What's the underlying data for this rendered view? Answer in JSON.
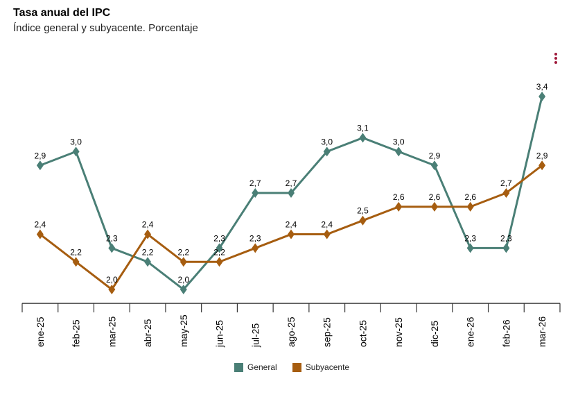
{
  "header": {
    "title": "Tasa anual del IPC",
    "subtitle": "Índice general y subyacente. Porcentaje"
  },
  "menu": {
    "icon": "vertical-dots-icon"
  },
  "chart_data": {
    "type": "line",
    "title": "Tasa anual del IPC",
    "subtitle": "Índice general y subyacente. Porcentaje",
    "xlabel": "",
    "ylabel": "",
    "categories": [
      "ene-25",
      "feb-25",
      "mar-25",
      "abr-25",
      "may-25",
      "jun-25",
      "jul-25",
      "ago-25",
      "sep-25",
      "oct-25",
      "nov-25",
      "dic-25",
      "ene-26",
      "feb-26",
      "mar-26"
    ],
    "ylim": [
      1.9,
      3.6
    ],
    "grid": false,
    "legend_position": "bottom",
    "series": [
      {
        "name": "General",
        "color": "#4a7f76",
        "values": [
          2.9,
          3.0,
          2.3,
          2.2,
          2.0,
          2.3,
          2.7,
          2.7,
          3.0,
          3.1,
          3.0,
          2.9,
          2.3,
          2.3,
          3.4
        ]
      },
      {
        "name": "Subyacente",
        "color": "#a65d10",
        "values": [
          2.4,
          2.2,
          2.0,
          2.4,
          2.2,
          2.2,
          2.3,
          2.4,
          2.4,
          2.5,
          2.6,
          2.6,
          2.6,
          2.7,
          2.9
        ]
      }
    ]
  }
}
